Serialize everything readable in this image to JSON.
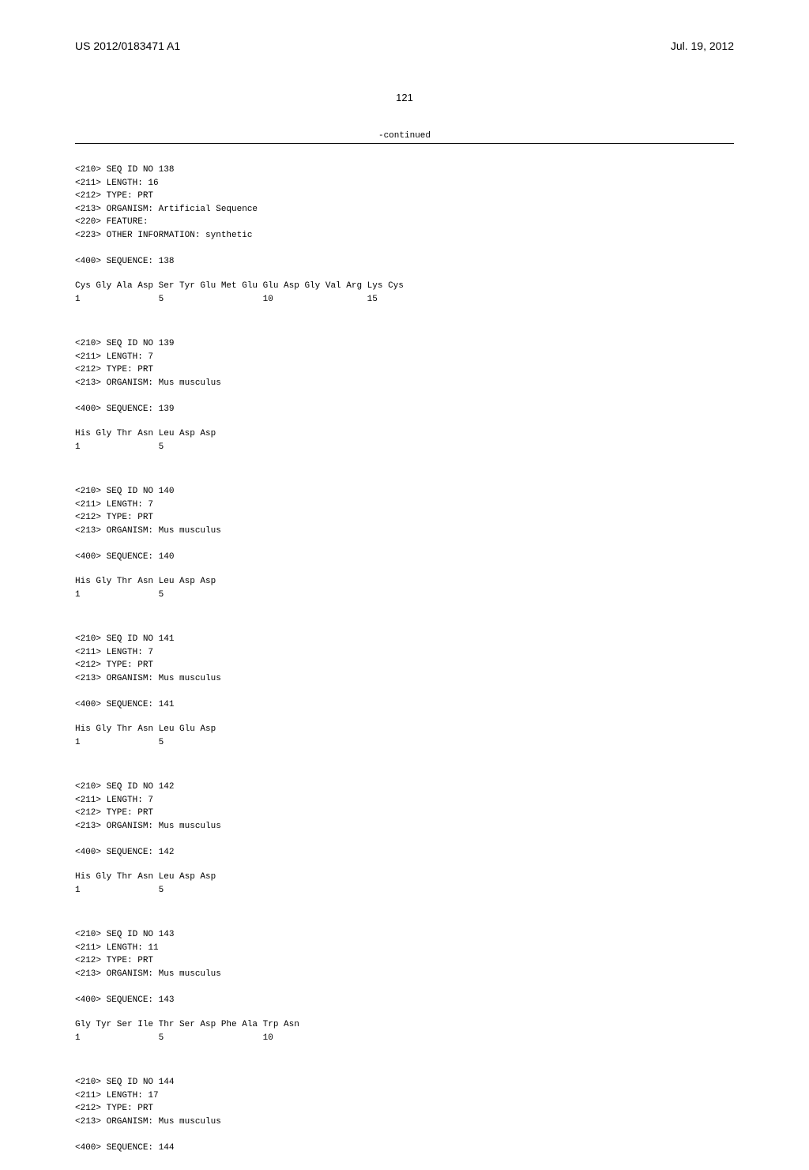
{
  "header": {
    "pub_number": "US 2012/0183471 A1",
    "pub_date": "Jul. 19, 2012"
  },
  "page_number": "121",
  "continued_label": "-continued",
  "sequences": [
    {
      "lines": [
        "<210> SEQ ID NO 138",
        "<211> LENGTH: 16",
        "<212> TYPE: PRT",
        "<213> ORGANISM: Artificial Sequence",
        "<220> FEATURE:",
        "<223> OTHER INFORMATION: synthetic",
        "",
        "<400> SEQUENCE: 138"
      ],
      "seq_line1": "Cys Gly Ala Asp Ser Tyr Glu Met Glu Glu Asp Gly Val Arg Lys Cys",
      "seq_line2": "1               5                   10                  15"
    },
    {
      "lines": [
        "<210> SEQ ID NO 139",
        "<211> LENGTH: 7",
        "<212> TYPE: PRT",
        "<213> ORGANISM: Mus musculus",
        "",
        "<400> SEQUENCE: 139"
      ],
      "seq_line1": "His Gly Thr Asn Leu Asp Asp",
      "seq_line2": "1               5"
    },
    {
      "lines": [
        "<210> SEQ ID NO 140",
        "<211> LENGTH: 7",
        "<212> TYPE: PRT",
        "<213> ORGANISM: Mus musculus",
        "",
        "<400> SEQUENCE: 140"
      ],
      "seq_line1": "His Gly Thr Asn Leu Asp Asp",
      "seq_line2": "1               5"
    },
    {
      "lines": [
        "<210> SEQ ID NO 141",
        "<211> LENGTH: 7",
        "<212> TYPE: PRT",
        "<213> ORGANISM: Mus musculus",
        "",
        "<400> SEQUENCE: 141"
      ],
      "seq_line1": "His Gly Thr Asn Leu Glu Asp",
      "seq_line2": "1               5"
    },
    {
      "lines": [
        "<210> SEQ ID NO 142",
        "<211> LENGTH: 7",
        "<212> TYPE: PRT",
        "<213> ORGANISM: Mus musculus",
        "",
        "<400> SEQUENCE: 142"
      ],
      "seq_line1": "His Gly Thr Asn Leu Asp Asp",
      "seq_line2": "1               5"
    },
    {
      "lines": [
        "<210> SEQ ID NO 143",
        "<211> LENGTH: 11",
        "<212> TYPE: PRT",
        "<213> ORGANISM: Mus musculus",
        "",
        "<400> SEQUENCE: 143"
      ],
      "seq_line1": "Gly Tyr Ser Ile Thr Ser Asp Phe Ala Trp Asn",
      "seq_line2": "1               5                   10"
    },
    {
      "lines": [
        "<210> SEQ ID NO 144",
        "<211> LENGTH: 17",
        "<212> TYPE: PRT",
        "<213> ORGANISM: Mus musculus",
        "",
        "<400> SEQUENCE: 144"
      ],
      "seq_line1": "",
      "seq_line2": ""
    }
  ]
}
